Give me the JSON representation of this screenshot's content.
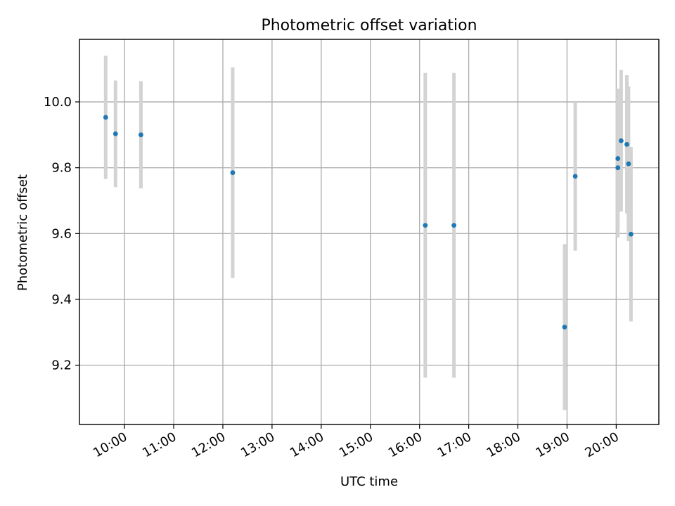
{
  "chart_data": {
    "type": "scatter",
    "title": "Photometric offset variation",
    "xlabel": "UTC time",
    "ylabel": "Photometric offset",
    "x_unit": "hours",
    "xlim": [
      9.0833,
      20.8667
    ],
    "ylim": [
      9.02,
      10.19
    ],
    "xticks": [
      {
        "value": 10,
        "label": "10:00"
      },
      {
        "value": 11,
        "label": "11:00"
      },
      {
        "value": 12,
        "label": "12:00"
      },
      {
        "value": 13,
        "label": "13:00"
      },
      {
        "value": 14,
        "label": "14:00"
      },
      {
        "value": 15,
        "label": "15:00"
      },
      {
        "value": 16,
        "label": "16:00"
      },
      {
        "value": 17,
        "label": "17:00"
      },
      {
        "value": 18,
        "label": "18:00"
      },
      {
        "value": 19,
        "label": "19:00"
      },
      {
        "value": 20,
        "label": "20:00"
      }
    ],
    "yticks": [
      {
        "value": 9.2,
        "label": "9.2"
      },
      {
        "value": 9.4,
        "label": "9.4"
      },
      {
        "value": 9.6,
        "label": "9.6"
      },
      {
        "value": 9.8,
        "label": "9.8"
      },
      {
        "value": 10.0,
        "label": "10.0"
      }
    ],
    "grid": true,
    "point_color": "#1f77b4",
    "errorbar_color": "#d3d3d3",
    "points": [
      {
        "x": "09:37",
        "y": 9.953,
        "yerr": 0.187
      },
      {
        "x": "09:49",
        "y": 9.903,
        "yerr": 0.162
      },
      {
        "x": "10:20",
        "y": 9.9,
        "yerr": 0.163
      },
      {
        "x": "12:12",
        "y": 9.785,
        "yerr": 0.32
      },
      {
        "x": "16:07",
        "y": 9.625,
        "yerr": 0.463
      },
      {
        "x": "16:42",
        "y": 9.625,
        "yerr": 0.463
      },
      {
        "x": "18:57",
        "y": 9.316,
        "yerr": 0.252
      },
      {
        "x": "19:10",
        "y": 9.774,
        "yerr": 0.226
      },
      {
        "x": "20:02",
        "y": 9.828,
        "yerr": 0.212
      },
      {
        "x": "20:02",
        "y": 9.8,
        "yerr": 0.212
      },
      {
        "x": "20:06",
        "y": 9.882,
        "yerr": 0.215
      },
      {
        "x": "20:13",
        "y": 9.871,
        "yerr": 0.21
      },
      {
        "x": "20:15",
        "y": 9.812,
        "yerr": 0.235
      },
      {
        "x": "20:18",
        "y": 9.598,
        "yerr": 0.265
      }
    ]
  }
}
